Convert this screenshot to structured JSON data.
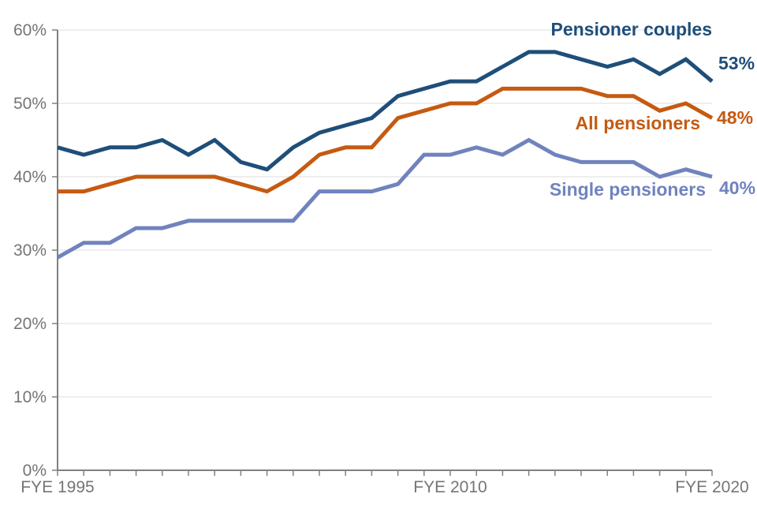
{
  "chart_data": {
    "type": "line",
    "title": "",
    "x_axis": {
      "categories": [
        1995,
        1996,
        1997,
        1998,
        1999,
        2000,
        2001,
        2002,
        2003,
        2004,
        2005,
        2006,
        2007,
        2008,
        2009,
        2010,
        2011,
        2012,
        2013,
        2014,
        2015,
        2016,
        2017,
        2018,
        2019,
        2020
      ],
      "category_prefix": "FYE",
      "shown_labels": [
        {
          "index": 0,
          "text": "FYE 1995"
        },
        {
          "index": 15,
          "text": "FYE 2010"
        },
        {
          "index": 25,
          "text": "FYE 2020"
        }
      ]
    },
    "y_axis": {
      "min": 0,
      "max": 60,
      "step": 10,
      "unit": "%",
      "tick_labels": [
        "0%",
        "10%",
        "20%",
        "30%",
        "40%",
        "50%",
        "60%"
      ]
    },
    "grid": "horizontal",
    "legend": "inline-labels",
    "series": [
      {
        "id": "pensioner-couples",
        "name": "Pensioner couples",
        "color": "#1F4E79",
        "end_label": "53%",
        "values": [
          44,
          43,
          44,
          44,
          45,
          43,
          45,
          42,
          41,
          44,
          46,
          47,
          48,
          51,
          52,
          53,
          53,
          55,
          57,
          57,
          56,
          55,
          56,
          54,
          56,
          53
        ]
      },
      {
        "id": "all-pensioners",
        "name": "All pensioners",
        "color": "#C55A11",
        "end_label": "48%",
        "values": [
          38,
          38,
          39,
          40,
          40,
          40,
          40,
          39,
          38,
          40,
          43,
          44,
          44,
          48,
          49,
          50,
          50,
          52,
          52,
          52,
          52,
          51,
          51,
          49,
          50,
          48
        ]
      },
      {
        "id": "single-pensioners",
        "name": "Single pensioners",
        "color": "#7183BE",
        "end_label": "40%",
        "values": [
          29,
          31,
          31,
          33,
          33,
          34,
          34,
          34,
          34,
          34,
          38,
          38,
          38,
          39,
          43,
          43,
          44,
          43,
          45,
          43,
          42,
          42,
          42,
          40,
          41,
          40
        ]
      }
    ]
  },
  "styles": {
    "axis_color": "#808080",
    "grid_color": "#E3E3E3",
    "tick_label_color": "#757575",
    "background": "#FFFFFF"
  }
}
